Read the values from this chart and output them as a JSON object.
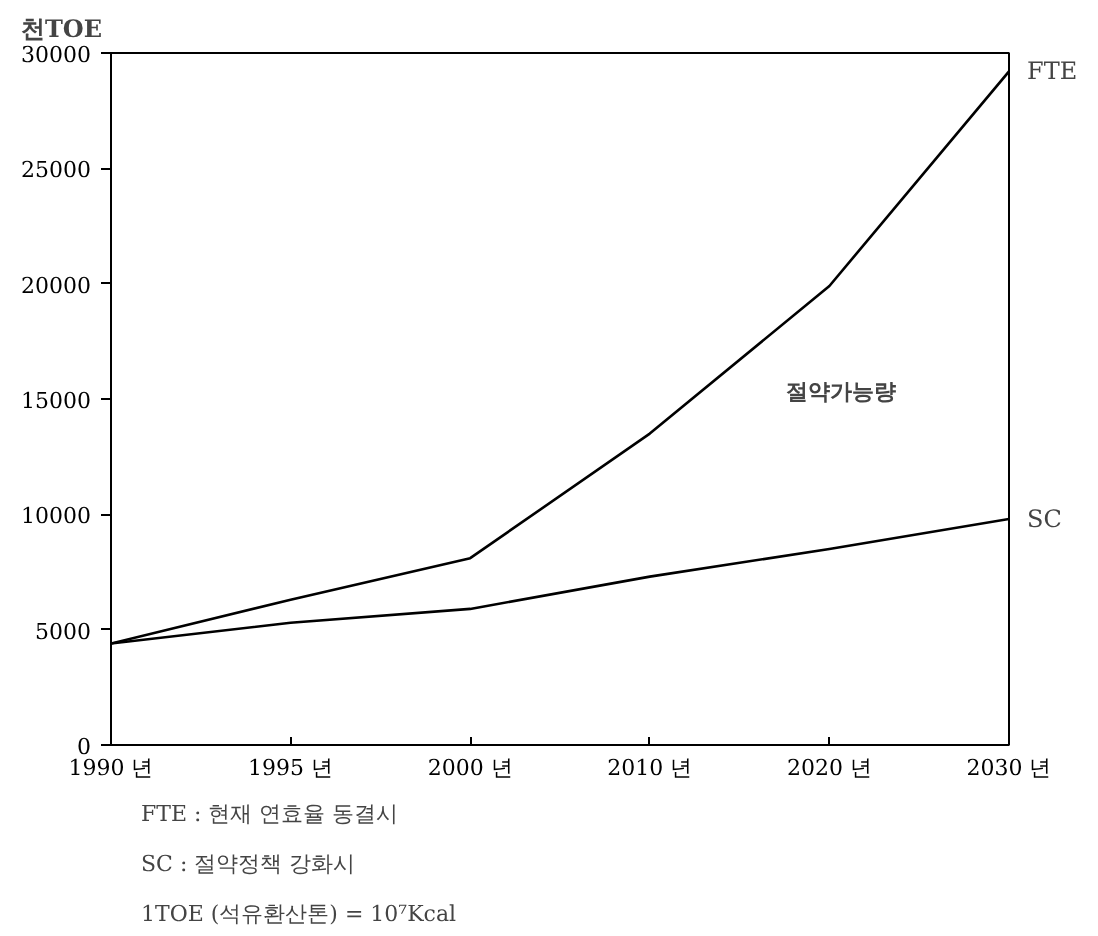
{
  "chart_data": {
    "type": "line",
    "ylabel": "천TOE",
    "categories": [
      "1990 년",
      "1995 년",
      "2000 년",
      "2010 년",
      "2020 년",
      "2030 년"
    ],
    "series": [
      {
        "name": "FTE",
        "color": "#000000",
        "values": [
          4400,
          6300,
          8100,
          13500,
          19900,
          29200
        ]
      },
      {
        "name": "SC",
        "color": "#000000",
        "values": [
          4400,
          5300,
          5900,
          7300,
          8500,
          9800
        ]
      }
    ],
    "ylim": [
      0,
      30000
    ],
    "yticks": [
      0,
      5000,
      10000,
      15000,
      20000,
      25000,
      30000
    ],
    "grid": false,
    "marker": "none",
    "line_style": "solid",
    "annotations": [
      "절약가능량",
      "FTE : 현재 연효율 동결시",
      "SC   : 절약정책 강화시",
      "1TOE (석유환산톤) = 10⁷Kcal"
    ]
  }
}
